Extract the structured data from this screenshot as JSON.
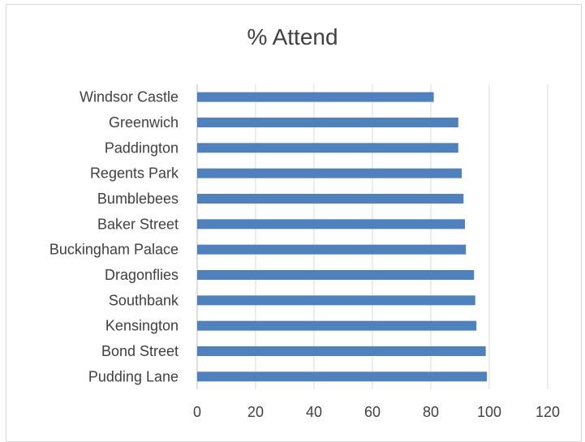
{
  "chart_data": {
    "type": "bar",
    "orientation": "horizontal",
    "title": "% Attend",
    "xlabel": "",
    "ylabel": "",
    "categories": [
      "Pudding Lane",
      "Bond Street",
      "Kensington",
      "Southbank",
      "Dragonflies",
      "Buckingham Palace",
      "Baker Street",
      "Bumblebees",
      "Regents Park",
      "Paddington",
      "Greenwich",
      "Windsor Castle"
    ],
    "values": [
      99.2,
      98.8,
      95.6,
      95.2,
      94.8,
      92.0,
      91.7,
      91.2,
      90.6,
      89.4,
      89.4,
      81.0
    ],
    "xlim": [
      0,
      120
    ],
    "ticks": [
      "0",
      "20",
      "40",
      "60",
      "80",
      "100",
      "120"
    ],
    "grid": true,
    "legend": "none",
    "bar_color": "#4f81bd",
    "grid_color": "#d9d9d9"
  }
}
